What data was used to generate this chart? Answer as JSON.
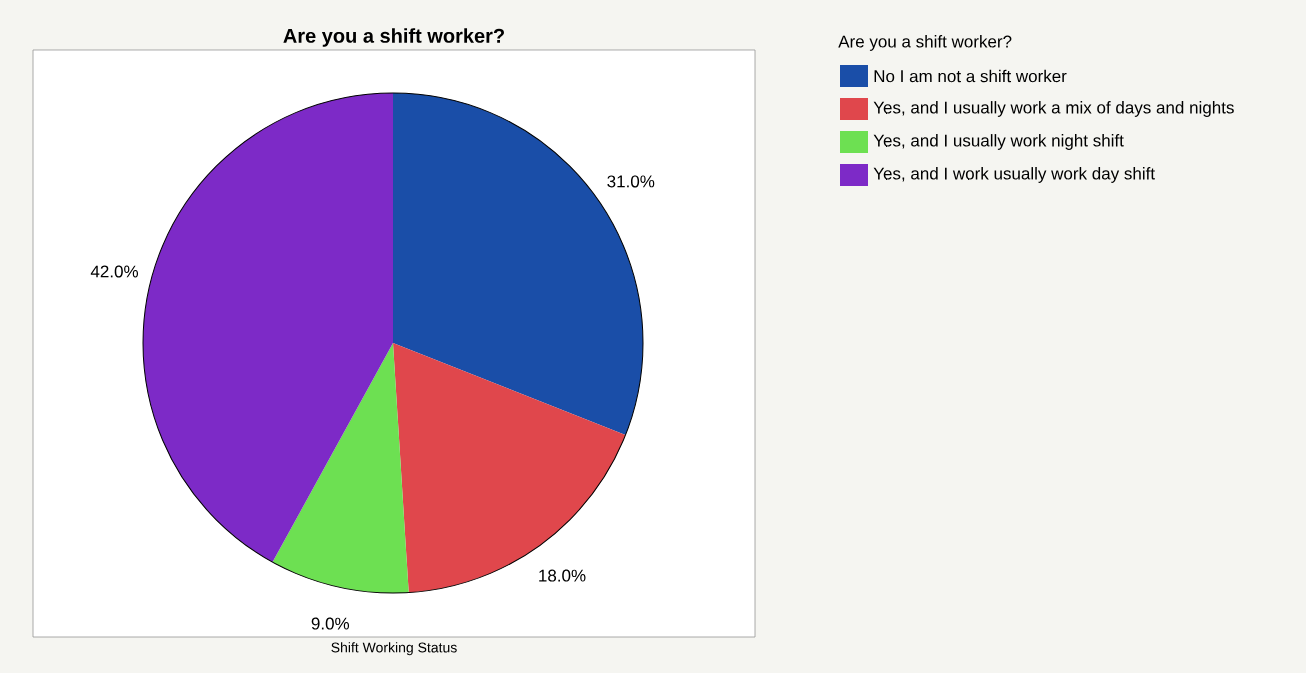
{
  "chart_data": {
    "type": "pie",
    "title": "Are you a shift worker?",
    "xlabel": "Shift Working Status",
    "legend_title": "Are you a shift worker?",
    "categories": [
      "No I am not a shift worker",
      "Yes, and I usually work a mix of days and nights",
      "Yes, and I usually work night shift",
      "Yes, and I work usually work day shift"
    ],
    "values": [
      31.0,
      18.0,
      9.0,
      42.0
    ],
    "value_labels": [
      "31.0%",
      "18.0%",
      "9.0%",
      "42.0%"
    ],
    "colors": [
      "#1a4ea8",
      "#e0474c",
      "#6de052",
      "#7d2ac7"
    ],
    "legend": "right"
  }
}
